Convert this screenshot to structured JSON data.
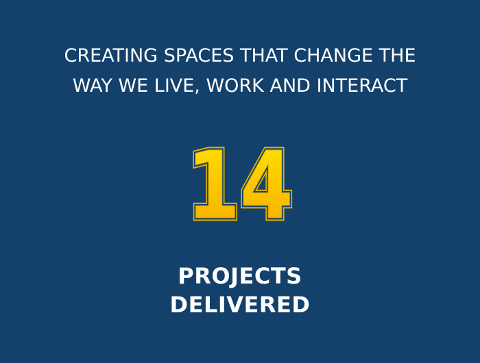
{
  "headline": {
    "line1": "CREATING SPACES THAT CHANGE THE",
    "line2": "WAY WE LIVE, WORK AND INTERACT"
  },
  "counter": {
    "value": "14"
  },
  "caption": {
    "line1": "PROJECTS",
    "line2": "DELIVERED"
  },
  "colors": {
    "background": "#13416b",
    "text": "#ffffff",
    "counter_fill_top": "#ffe600",
    "counter_fill_bottom": "#f7a800",
    "counter_outline": "#d9b000"
  }
}
